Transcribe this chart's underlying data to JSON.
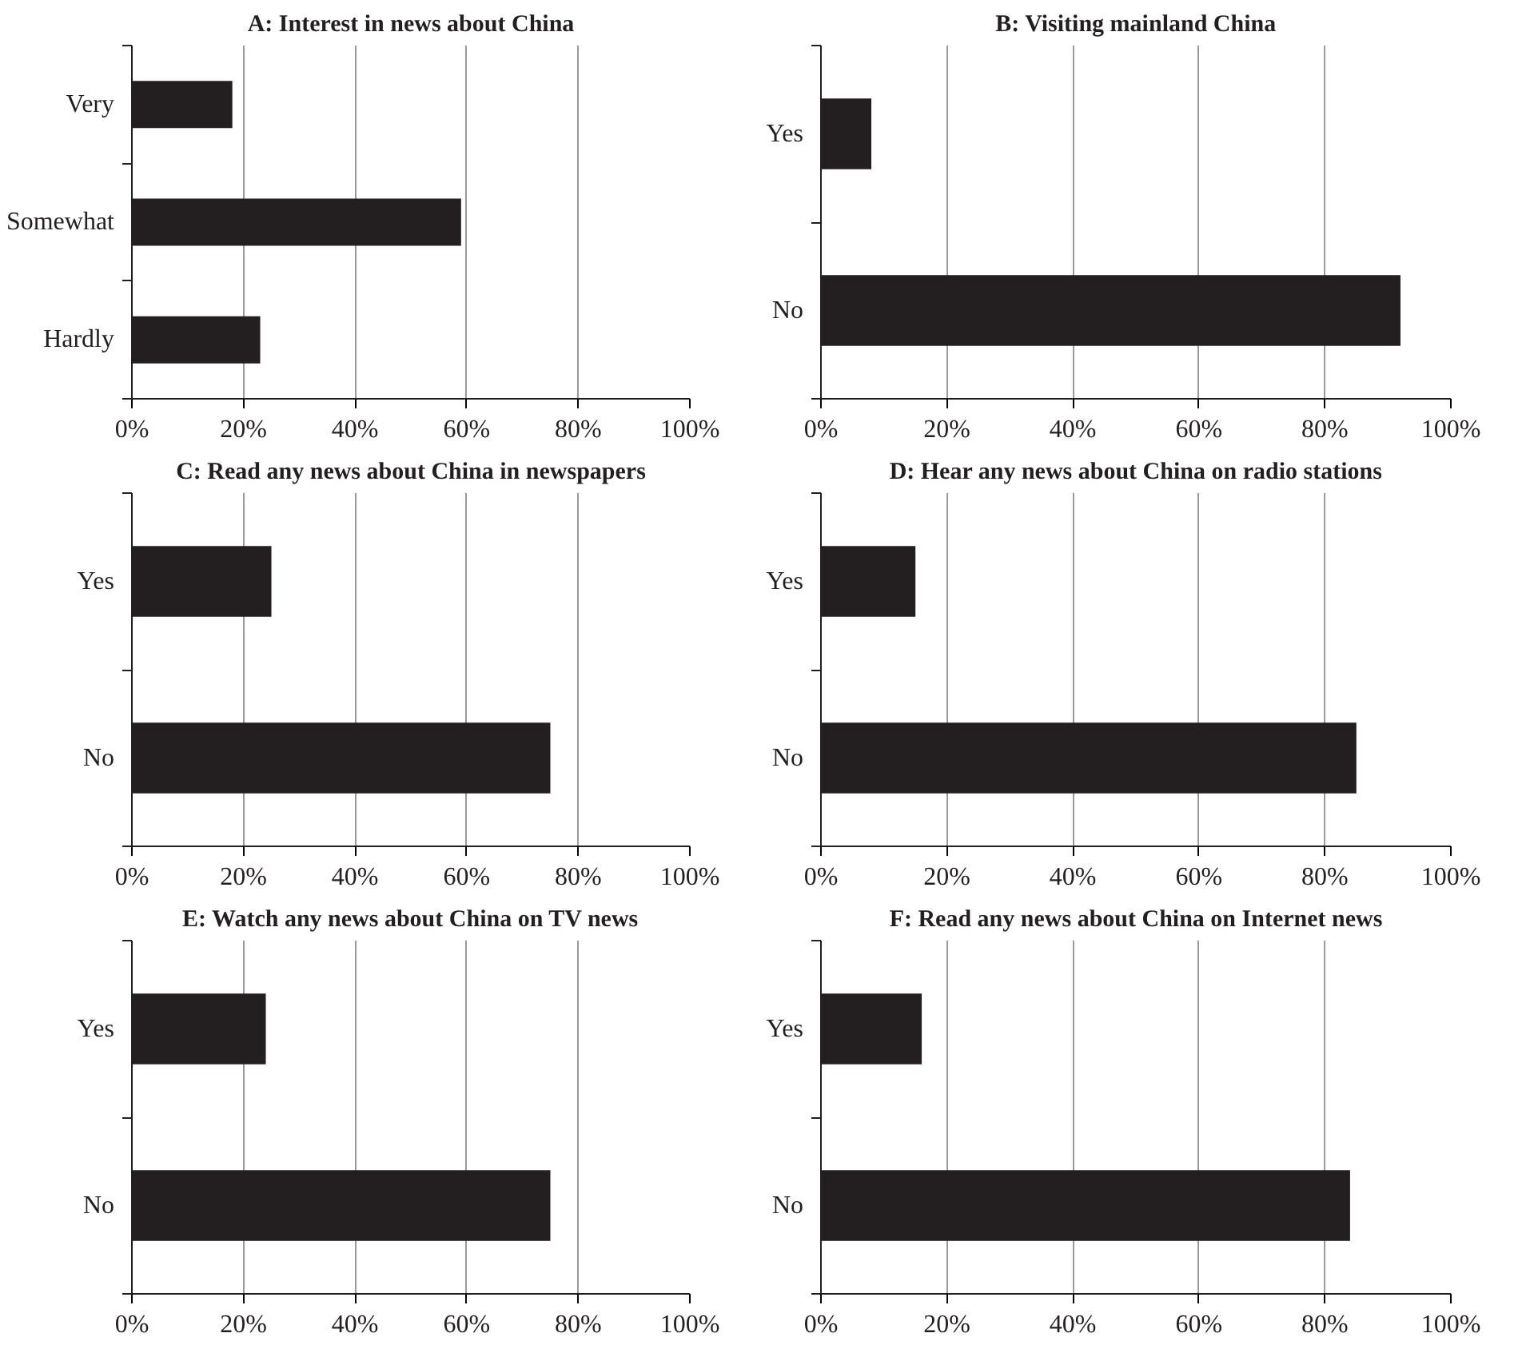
{
  "chart_data": [
    {
      "type": "bar",
      "orientation": "horizontal",
      "title": "A: Interest in news about China",
      "categories": [
        "Very",
        "Somewhat",
        "Hardly"
      ],
      "values": [
        18,
        59,
        23
      ],
      "color": "#231f20",
      "xlim": [
        0,
        100
      ],
      "xticks": [
        {
          "value": 0,
          "label": "0%"
        },
        {
          "value": 20,
          "label": "20%"
        },
        {
          "value": 40,
          "label": "40%"
        },
        {
          "value": 60,
          "label": "60%"
        },
        {
          "value": 80,
          "label": "80%"
        },
        {
          "value": 100,
          "label": "100%"
        }
      ],
      "grid": "x"
    },
    {
      "type": "bar",
      "orientation": "horizontal",
      "title": "B: Visiting mainland China",
      "categories": [
        "Yes",
        "No"
      ],
      "values": [
        8,
        92
      ],
      "color": "#231f20",
      "xlim": [
        0,
        100
      ],
      "xticks": [
        {
          "value": 0,
          "label": "0%"
        },
        {
          "value": 20,
          "label": "20%"
        },
        {
          "value": 40,
          "label": "40%"
        },
        {
          "value": 60,
          "label": "60%"
        },
        {
          "value": 80,
          "label": "80%"
        },
        {
          "value": 100,
          "label": "100%"
        }
      ],
      "grid": "x"
    },
    {
      "type": "bar",
      "orientation": "horizontal",
      "title": "C: Read any news about China in newspapers",
      "categories": [
        "Yes",
        "No"
      ],
      "values": [
        25,
        75
      ],
      "color": "#231f20",
      "xlim": [
        0,
        100
      ],
      "xticks": [
        {
          "value": 0,
          "label": "0%"
        },
        {
          "value": 20,
          "label": "20%"
        },
        {
          "value": 40,
          "label": "40%"
        },
        {
          "value": 60,
          "label": "60%"
        },
        {
          "value": 80,
          "label": "80%"
        },
        {
          "value": 100,
          "label": "100%"
        }
      ],
      "grid": "x"
    },
    {
      "type": "bar",
      "orientation": "horizontal",
      "title": "D: Hear any news about China on radio stations",
      "categories": [
        "Yes",
        "No"
      ],
      "values": [
        15,
        85
      ],
      "color": "#231f20",
      "xlim": [
        0,
        100
      ],
      "xticks": [
        {
          "value": 0,
          "label": "0%"
        },
        {
          "value": 20,
          "label": "20%"
        },
        {
          "value": 40,
          "label": "40%"
        },
        {
          "value": 60,
          "label": "60%"
        },
        {
          "value": 80,
          "label": "80%"
        },
        {
          "value": 100,
          "label": "100%"
        }
      ],
      "grid": "x"
    },
    {
      "type": "bar",
      "orientation": "horizontal",
      "title": "E: Watch any news about China on TV news",
      "categories": [
        "Yes",
        "No"
      ],
      "values": [
        24,
        75
      ],
      "color": "#231f20",
      "xlim": [
        0,
        100
      ],
      "xticks": [
        {
          "value": 0,
          "label": "0%"
        },
        {
          "value": 20,
          "label": "20%"
        },
        {
          "value": 40,
          "label": "40%"
        },
        {
          "value": 60,
          "label": "60%"
        },
        {
          "value": 80,
          "label": "80%"
        },
        {
          "value": 100,
          "label": "100%"
        }
      ],
      "grid": "x"
    },
    {
      "type": "bar",
      "orientation": "horizontal",
      "title": "F: Read any news about China on Internet news",
      "categories": [
        "Yes",
        "No"
      ],
      "values": [
        16,
        84
      ],
      "color": "#231f20",
      "xlim": [
        0,
        100
      ],
      "xticks": [
        {
          "value": 0,
          "label": "0%"
        },
        {
          "value": 20,
          "label": "20%"
        },
        {
          "value": 40,
          "label": "40%"
        },
        {
          "value": 60,
          "label": "60%"
        },
        {
          "value": 80,
          "label": "80%"
        },
        {
          "value": 100,
          "label": "100%"
        }
      ],
      "grid": "x"
    }
  ]
}
